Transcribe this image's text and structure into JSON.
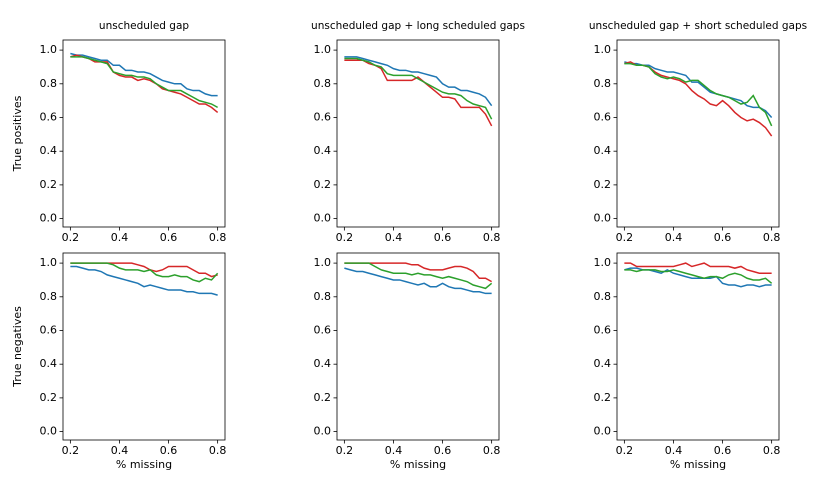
{
  "chart_data": [
    {
      "type": "line",
      "title": "unscheduled gap",
      "ylabel": "True positives",
      "x": [
        0.2,
        0.225,
        0.25,
        0.275,
        0.3,
        0.325,
        0.35,
        0.375,
        0.4,
        0.425,
        0.45,
        0.475,
        0.5,
        0.525,
        0.55,
        0.575,
        0.6,
        0.625,
        0.65,
        0.675,
        0.7,
        0.725,
        0.75,
        0.775,
        0.8
      ],
      "xlim": [
        0.17,
        0.83
      ],
      "ylim": [
        -0.05,
        1.06
      ],
      "xticks": [
        0.2,
        0.4,
        0.6,
        0.8
      ],
      "yticks": [
        {
          "value": 0,
          "label": "0.0"
        },
        0.2,
        0.4,
        0.6,
        0.8,
        {
          "value": 1,
          "label": "1.0"
        }
      ],
      "series": [
        {
          "color": "#1f77b4",
          "values": [
            0.98,
            0.97,
            0.97,
            0.96,
            0.95,
            0.94,
            0.94,
            0.91,
            0.91,
            0.88,
            0.88,
            0.87,
            0.87,
            0.86,
            0.84,
            0.82,
            0.81,
            0.8,
            0.8,
            0.77,
            0.76,
            0.76,
            0.74,
            0.73,
            0.73
          ]
        },
        {
          "color": "#d62728",
          "values": [
            0.96,
            0.97,
            0.96,
            0.95,
            0.93,
            0.93,
            0.93,
            0.87,
            0.85,
            0.84,
            0.84,
            0.82,
            0.83,
            0.82,
            0.8,
            0.77,
            0.76,
            0.75,
            0.74,
            0.72,
            0.7,
            0.68,
            0.68,
            0.66,
            0.63
          ]
        },
        {
          "color": "#2ca02c",
          "values": [
            0.96,
            0.96,
            0.96,
            0.95,
            0.94,
            0.93,
            0.92,
            0.87,
            0.86,
            0.85,
            0.85,
            0.84,
            0.84,
            0.83,
            0.8,
            0.78,
            0.76,
            0.76,
            0.76,
            0.74,
            0.72,
            0.7,
            0.69,
            0.68,
            0.66
          ]
        }
      ]
    },
    {
      "type": "line",
      "title": "unscheduled gap + long scheduled gaps",
      "x": [
        0.2,
        0.225,
        0.25,
        0.275,
        0.3,
        0.325,
        0.35,
        0.375,
        0.4,
        0.425,
        0.45,
        0.475,
        0.5,
        0.525,
        0.55,
        0.575,
        0.6,
        0.625,
        0.65,
        0.675,
        0.7,
        0.725,
        0.75,
        0.775,
        0.8
      ],
      "xlim": [
        0.17,
        0.83
      ],
      "ylim": [
        -0.05,
        1.06
      ],
      "xticks": [
        0.2,
        0.4,
        0.6,
        0.8
      ],
      "yticks": [
        {
          "value": 0,
          "label": "0.0"
        },
        0.2,
        0.4,
        0.6,
        0.8,
        {
          "value": 1,
          "label": "1.0"
        }
      ],
      "series": [
        {
          "color": "#1f77b4",
          "values": [
            0.96,
            0.96,
            0.96,
            0.95,
            0.94,
            0.93,
            0.92,
            0.91,
            0.89,
            0.88,
            0.88,
            0.87,
            0.87,
            0.86,
            0.85,
            0.84,
            0.8,
            0.78,
            0.78,
            0.76,
            0.76,
            0.75,
            0.74,
            0.72,
            0.67
          ]
        },
        {
          "color": "#d62728",
          "values": [
            0.94,
            0.94,
            0.94,
            0.94,
            0.92,
            0.91,
            0.89,
            0.82,
            0.82,
            0.82,
            0.82,
            0.82,
            0.84,
            0.81,
            0.78,
            0.75,
            0.72,
            0.72,
            0.71,
            0.66,
            0.66,
            0.66,
            0.66,
            0.62,
            0.55
          ]
        },
        {
          "color": "#2ca02c",
          "values": [
            0.95,
            0.95,
            0.95,
            0.94,
            0.93,
            0.91,
            0.9,
            0.86,
            0.85,
            0.85,
            0.85,
            0.85,
            0.83,
            0.81,
            0.79,
            0.77,
            0.75,
            0.74,
            0.74,
            0.73,
            0.7,
            0.68,
            0.67,
            0.66,
            0.59
          ]
        }
      ]
    },
    {
      "type": "line",
      "title": "unscheduled gap + short scheduled gaps",
      "x": [
        0.2,
        0.225,
        0.25,
        0.275,
        0.3,
        0.325,
        0.35,
        0.375,
        0.4,
        0.425,
        0.45,
        0.475,
        0.5,
        0.525,
        0.55,
        0.575,
        0.6,
        0.625,
        0.65,
        0.675,
        0.7,
        0.725,
        0.75,
        0.775,
        0.8
      ],
      "xlim": [
        0.17,
        0.83
      ],
      "ylim": [
        -0.05,
        1.06
      ],
      "xticks": [
        0.2,
        0.4,
        0.6,
        0.8
      ],
      "yticks": [
        {
          "value": 0,
          "label": "0.0"
        },
        0.2,
        0.4,
        0.6,
        0.8,
        {
          "value": 1,
          "label": "1.0"
        }
      ],
      "series": [
        {
          "color": "#1f77b4",
          "values": [
            0.93,
            0.92,
            0.92,
            0.91,
            0.91,
            0.89,
            0.88,
            0.87,
            0.87,
            0.86,
            0.85,
            0.81,
            0.81,
            0.78,
            0.75,
            0.74,
            0.73,
            0.72,
            0.71,
            0.7,
            0.67,
            0.66,
            0.66,
            0.64,
            0.6
          ]
        },
        {
          "color": "#d62728",
          "values": [
            0.92,
            0.93,
            0.91,
            0.91,
            0.9,
            0.87,
            0.85,
            0.84,
            0.83,
            0.82,
            0.8,
            0.76,
            0.73,
            0.71,
            0.68,
            0.67,
            0.7,
            0.67,
            0.63,
            0.6,
            0.58,
            0.59,
            0.57,
            0.54,
            0.49
          ]
        },
        {
          "color": "#2ca02c",
          "values": [
            0.92,
            0.92,
            0.91,
            0.91,
            0.9,
            0.86,
            0.84,
            0.83,
            0.84,
            0.83,
            0.81,
            0.82,
            0.82,
            0.79,
            0.76,
            0.74,
            0.73,
            0.72,
            0.7,
            0.68,
            0.69,
            0.73,
            0.66,
            0.63,
            0.55
          ]
        }
      ]
    },
    {
      "type": "line",
      "ylabel": "True negatives",
      "xlabel": "% missing",
      "x": [
        0.2,
        0.225,
        0.25,
        0.275,
        0.3,
        0.325,
        0.35,
        0.375,
        0.4,
        0.425,
        0.45,
        0.475,
        0.5,
        0.525,
        0.55,
        0.575,
        0.6,
        0.625,
        0.65,
        0.675,
        0.7,
        0.725,
        0.75,
        0.775,
        0.8
      ],
      "xlim": [
        0.17,
        0.83
      ],
      "ylim": [
        -0.05,
        1.06
      ],
      "xticks": [
        0.2,
        0.4,
        0.6,
        0.8
      ],
      "yticks": [
        {
          "value": 0,
          "label": "0.0"
        },
        0.2,
        0.4,
        0.6,
        0.8,
        {
          "value": 1,
          "label": "1.0"
        }
      ],
      "series": [
        {
          "color": "#1f77b4",
          "values": [
            0.98,
            0.98,
            0.97,
            0.96,
            0.96,
            0.95,
            0.93,
            0.92,
            0.91,
            0.9,
            0.89,
            0.88,
            0.86,
            0.87,
            0.86,
            0.85,
            0.84,
            0.84,
            0.84,
            0.83,
            0.83,
            0.82,
            0.82,
            0.82,
            0.81
          ]
        },
        {
          "color": "#d62728",
          "values": [
            1.0,
            1.0,
            1.0,
            1.0,
            1.0,
            1.0,
            1.0,
            1.0,
            1.0,
            1.0,
            1.0,
            0.99,
            0.98,
            0.96,
            0.95,
            0.96,
            0.98,
            0.98,
            0.98,
            0.98,
            0.96,
            0.94,
            0.94,
            0.92,
            0.93
          ]
        },
        {
          "color": "#2ca02c",
          "values": [
            1.0,
            1.0,
            1.0,
            1.0,
            1.0,
            1.0,
            1.0,
            0.99,
            0.97,
            0.96,
            0.96,
            0.96,
            0.95,
            0.96,
            0.93,
            0.92,
            0.92,
            0.93,
            0.92,
            0.92,
            0.9,
            0.89,
            0.91,
            0.9,
            0.94
          ]
        }
      ]
    },
    {
      "type": "line",
      "xlabel": "% missing",
      "x": [
        0.2,
        0.225,
        0.25,
        0.275,
        0.3,
        0.325,
        0.35,
        0.375,
        0.4,
        0.425,
        0.45,
        0.475,
        0.5,
        0.525,
        0.55,
        0.575,
        0.6,
        0.625,
        0.65,
        0.675,
        0.7,
        0.725,
        0.75,
        0.775,
        0.8
      ],
      "xlim": [
        0.17,
        0.83
      ],
      "ylim": [
        -0.05,
        1.06
      ],
      "xticks": [
        0.2,
        0.4,
        0.6,
        0.8
      ],
      "yticks": [
        {
          "value": 0,
          "label": "0.0"
        },
        0.2,
        0.4,
        0.6,
        0.8,
        {
          "value": 1,
          "label": "1.0"
        }
      ],
      "series": [
        {
          "color": "#1f77b4",
          "values": [
            0.97,
            0.96,
            0.95,
            0.95,
            0.94,
            0.93,
            0.92,
            0.91,
            0.9,
            0.9,
            0.89,
            0.88,
            0.87,
            0.88,
            0.86,
            0.86,
            0.88,
            0.86,
            0.85,
            0.85,
            0.84,
            0.83,
            0.83,
            0.82,
            0.82
          ]
        },
        {
          "color": "#d62728",
          "values": [
            1.0,
            1.0,
            1.0,
            1.0,
            1.0,
            1.0,
            1.0,
            1.0,
            1.0,
            1.0,
            1.0,
            0.99,
            0.99,
            0.97,
            0.96,
            0.96,
            0.96,
            0.97,
            0.98,
            0.98,
            0.97,
            0.95,
            0.91,
            0.91,
            0.89
          ]
        },
        {
          "color": "#2ca02c",
          "values": [
            1.0,
            1.0,
            1.0,
            1.0,
            1.0,
            0.98,
            0.96,
            0.95,
            0.94,
            0.94,
            0.94,
            0.93,
            0.94,
            0.93,
            0.93,
            0.92,
            0.91,
            0.92,
            0.91,
            0.9,
            0.89,
            0.87,
            0.86,
            0.85,
            0.88
          ]
        }
      ]
    },
    {
      "type": "line",
      "xlabel": "% missing",
      "x": [
        0.2,
        0.225,
        0.25,
        0.275,
        0.3,
        0.325,
        0.35,
        0.375,
        0.4,
        0.425,
        0.45,
        0.475,
        0.5,
        0.525,
        0.55,
        0.575,
        0.6,
        0.625,
        0.65,
        0.675,
        0.7,
        0.725,
        0.75,
        0.775,
        0.8
      ],
      "xlim": [
        0.17,
        0.83
      ],
      "ylim": [
        -0.05,
        1.06
      ],
      "xticks": [
        0.2,
        0.4,
        0.6,
        0.8
      ],
      "yticks": [
        {
          "value": 0,
          "label": "0.0"
        },
        0.2,
        0.4,
        0.6,
        0.8,
        {
          "value": 1,
          "label": "1.0"
        }
      ],
      "series": [
        {
          "color": "#1f77b4",
          "values": [
            0.96,
            0.97,
            0.97,
            0.96,
            0.96,
            0.95,
            0.94,
            0.96,
            0.94,
            0.93,
            0.92,
            0.91,
            0.91,
            0.91,
            0.91,
            0.92,
            0.88,
            0.87,
            0.87,
            0.86,
            0.87,
            0.87,
            0.86,
            0.87,
            0.87
          ]
        },
        {
          "color": "#d62728",
          "values": [
            1.0,
            1.0,
            0.98,
            0.98,
            0.98,
            0.98,
            0.98,
            0.98,
            0.98,
            0.99,
            1.0,
            0.98,
            0.99,
            1.0,
            0.98,
            0.98,
            0.98,
            0.98,
            0.97,
            0.98,
            0.96,
            0.95,
            0.94,
            0.94,
            0.94
          ]
        },
        {
          "color": "#2ca02c",
          "values": [
            0.96,
            0.96,
            0.95,
            0.96,
            0.96,
            0.96,
            0.95,
            0.95,
            0.96,
            0.95,
            0.94,
            0.93,
            0.92,
            0.91,
            0.92,
            0.92,
            0.91,
            0.93,
            0.94,
            0.93,
            0.91,
            0.9,
            0.9,
            0.91,
            0.88
          ]
        }
      ]
    }
  ]
}
